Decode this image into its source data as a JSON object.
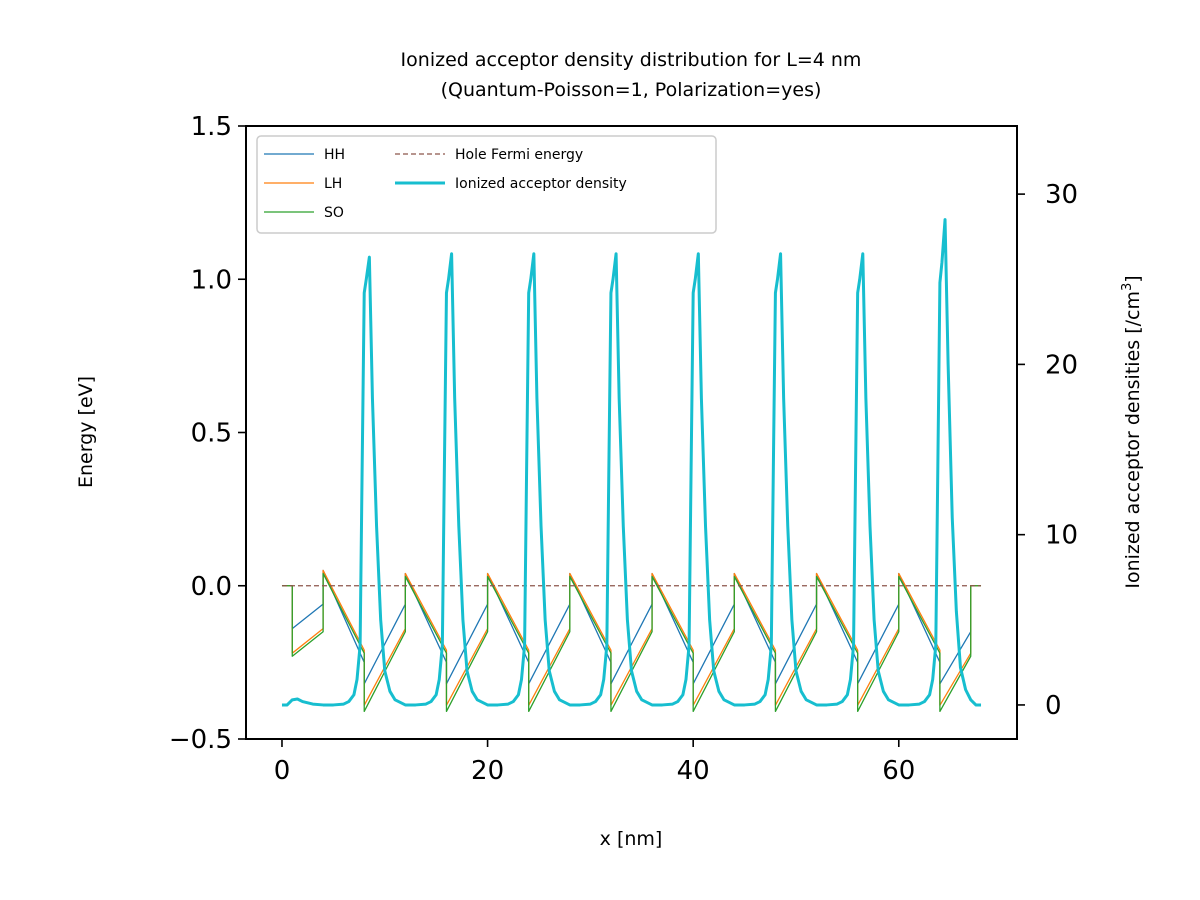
{
  "chart_data": {
    "type": "line",
    "title": "Ionized acceptor density distribution for L=4 nm",
    "subtitle": "(Quantum-Poisson=1, Polarization=yes)",
    "xlabel": "x [nm]",
    "ylabel": "Energy [eV]",
    "ylabel_right": "Ionized acceptor densities [/cm",
    "ylabel_right_sup": "3",
    "ylabel_right_end": "]",
    "xlim": [
      -3.5,
      71.5
    ],
    "ylim": [
      -0.5,
      1.5
    ],
    "ylim_right": [
      -2,
      34
    ],
    "xticks": [
      0,
      20,
      40,
      60
    ],
    "xtick_labels": [
      "0",
      "20",
      "40",
      "60"
    ],
    "yticks": [
      -0.5,
      0.0,
      0.5,
      1.0,
      1.5
    ],
    "ytick_labels": [
      "−0.5",
      "0.0",
      "0.5",
      "1.0",
      "1.5"
    ],
    "yticks_right": [
      0,
      10,
      20,
      30
    ],
    "ytick_labels_right": [
      "0",
      "10",
      "20",
      "30"
    ],
    "grid": false,
    "legend_position": "top-left",
    "legend": [
      {
        "label": "HH",
        "color": "#1f77b4",
        "style": "solid"
      },
      {
        "label": "LH",
        "color": "#ff7f0e",
        "style": "solid"
      },
      {
        "label": "SO",
        "color": "#2ca02c",
        "style": "solid"
      },
      {
        "label": "Hole Fermi energy",
        "color": "#8c564b",
        "style": "dashed"
      },
      {
        "label": "Ionized acceptor density",
        "color": "#17becf",
        "style": "solid-thick"
      }
    ],
    "series": [
      {
        "name": "HH",
        "axis": "left",
        "color": "#1f77b4",
        "x": [
          0,
          1,
          1,
          4,
          4,
          8,
          8,
          12,
          12,
          16,
          16,
          20,
          20,
          24,
          24,
          28,
          28,
          32,
          32,
          36,
          36,
          40,
          40,
          44,
          44,
          48,
          48,
          52,
          52,
          56,
          56,
          60,
          60,
          64,
          64,
          67,
          67,
          68
        ],
        "y": [
          0,
          0,
          -0.14,
          -0.06,
          0.05,
          -0.25,
          -0.32,
          -0.06,
          0.04,
          -0.25,
          -0.32,
          -0.06,
          0.04,
          -0.25,
          -0.32,
          -0.06,
          0.04,
          -0.25,
          -0.32,
          -0.06,
          0.04,
          -0.25,
          -0.32,
          -0.06,
          0.04,
          -0.25,
          -0.32,
          -0.06,
          0.04,
          -0.25,
          -0.32,
          -0.06,
          0.04,
          -0.25,
          -0.32,
          -0.15,
          0,
          0
        ]
      },
      {
        "name": "LH",
        "axis": "left",
        "color": "#ff7f0e",
        "x": [
          0,
          1,
          1,
          4,
          4,
          8,
          8,
          12,
          12,
          16,
          16,
          20,
          20,
          24,
          24,
          28,
          28,
          32,
          32,
          36,
          36,
          40,
          40,
          44,
          44,
          48,
          48,
          52,
          52,
          56,
          56,
          60,
          60,
          64,
          64,
          67,
          67,
          68
        ],
        "y": [
          0,
          0,
          -0.22,
          -0.14,
          0.05,
          -0.21,
          -0.39,
          -0.14,
          0.04,
          -0.21,
          -0.39,
          -0.14,
          0.04,
          -0.21,
          -0.39,
          -0.14,
          0.04,
          -0.21,
          -0.39,
          -0.14,
          0.04,
          -0.21,
          -0.39,
          -0.14,
          0.04,
          -0.21,
          -0.39,
          -0.14,
          0.04,
          -0.21,
          -0.39,
          -0.14,
          0.04,
          -0.21,
          -0.39,
          -0.22,
          0,
          0
        ]
      },
      {
        "name": "SO",
        "axis": "left",
        "color": "#2ca02c",
        "x": [
          0,
          1,
          1,
          4,
          4,
          8,
          8,
          12,
          12,
          16,
          16,
          20,
          20,
          24,
          24,
          28,
          28,
          32,
          32,
          36,
          36,
          40,
          40,
          44,
          44,
          48,
          48,
          52,
          52,
          56,
          56,
          60,
          60,
          64,
          64,
          67,
          67,
          68
        ],
        "y": [
          0,
          0,
          -0.23,
          -0.15,
          0.04,
          -0.22,
          -0.41,
          -0.15,
          0.03,
          -0.22,
          -0.41,
          -0.15,
          0.03,
          -0.22,
          -0.41,
          -0.15,
          0.03,
          -0.22,
          -0.41,
          -0.15,
          0.03,
          -0.22,
          -0.41,
          -0.15,
          0.03,
          -0.22,
          -0.41,
          -0.15,
          0.03,
          -0.22,
          -0.41,
          -0.15,
          0.03,
          -0.22,
          -0.41,
          -0.23,
          0,
          0
        ]
      },
      {
        "name": "Hole Fermi energy",
        "axis": "left",
        "color": "#8c564b",
        "x": [
          0,
          68
        ],
        "y": [
          0,
          0
        ]
      },
      {
        "name": "Ionized acceptor density",
        "axis": "right",
        "color": "#17becf",
        "x": [
          0,
          0.5,
          1,
          1.5,
          2,
          3,
          4,
          5,
          6,
          6.5,
          7,
          7.3,
          7.6,
          7.8,
          8,
          8.2,
          8.5,
          8.8,
          9.2,
          9.6,
          10,
          10.5,
          11,
          12,
          13,
          14,
          14.5,
          15,
          15.3,
          15.6,
          15.8,
          16,
          16.2,
          16.5,
          16.8,
          17.2,
          17.6,
          18,
          18.5,
          19,
          20,
          21,
          22,
          22.5,
          23,
          23.3,
          23.6,
          23.8,
          24,
          24.2,
          24.5,
          24.8,
          25.2,
          25.6,
          26,
          26.5,
          27,
          28,
          29,
          30,
          30.5,
          31,
          31.3,
          31.6,
          31.8,
          32,
          32.2,
          32.5,
          32.8,
          33.2,
          33.6,
          34,
          34.5,
          35,
          36,
          37,
          38,
          38.5,
          39,
          39.3,
          39.6,
          39.8,
          40,
          40.2,
          40.5,
          40.8,
          41.2,
          41.6,
          42,
          42.5,
          43,
          44,
          45,
          46,
          46.5,
          47,
          47.3,
          47.6,
          47.8,
          48,
          48.2,
          48.5,
          48.8,
          49.2,
          49.6,
          50,
          50.5,
          51,
          52,
          53,
          54,
          54.5,
          55,
          55.3,
          55.6,
          55.8,
          56,
          56.2,
          56.5,
          56.8,
          57.2,
          57.6,
          58,
          58.5,
          59,
          60,
          61,
          62,
          62.5,
          63,
          63.3,
          63.6,
          63.8,
          64,
          64.2,
          64.5,
          64.8,
          65.2,
          65.6,
          66,
          66.5,
          67,
          67.5,
          68
        ],
        "y": [
          0,
          0,
          0.3,
          0.35,
          0.2,
          0.05,
          0,
          0,
          0.05,
          0.2,
          0.6,
          1.5,
          3.5,
          14,
          24.2,
          25,
          26.3,
          18,
          10.5,
          5,
          2,
          0.8,
          0.3,
          0,
          0,
          0.05,
          0.2,
          0.6,
          1.5,
          3.5,
          14,
          24.2,
          25,
          26.5,
          18,
          10.5,
          5,
          2,
          0.8,
          0.3,
          0,
          0,
          0.05,
          0.2,
          0.6,
          1.5,
          3.5,
          14,
          24.2,
          25,
          26.5,
          18,
          10.5,
          5,
          2,
          0.8,
          0.3,
          0,
          0,
          0.05,
          0.2,
          0.6,
          1.5,
          3.5,
          14,
          24.2,
          25,
          26.5,
          18,
          10.5,
          5,
          2,
          0.8,
          0.3,
          0,
          0,
          0.05,
          0.2,
          0.6,
          1.5,
          3.5,
          14,
          24.2,
          25,
          26.5,
          18,
          10.5,
          5,
          2,
          0.8,
          0.3,
          0,
          0,
          0.05,
          0.2,
          0.6,
          1.5,
          3.5,
          14,
          24.2,
          25,
          26.5,
          18,
          10.5,
          5,
          2,
          0.8,
          0.3,
          0,
          0,
          0.05,
          0.2,
          0.6,
          1.5,
          3.5,
          14,
          24.2,
          25,
          26.5,
          18,
          10.5,
          5,
          2,
          0.8,
          0.3,
          0,
          0,
          0.05,
          0.2,
          0.6,
          1.5,
          3.5,
          14,
          24.8,
          26,
          28.5,
          20,
          11,
          5.5,
          2.2,
          0.9,
          0.3,
          0,
          0
        ]
      }
    ]
  }
}
